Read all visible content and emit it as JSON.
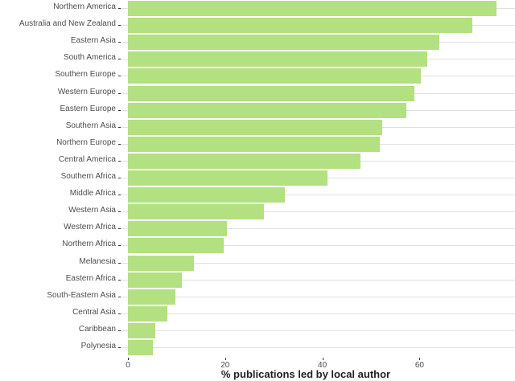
{
  "chart_data": {
    "type": "bar",
    "orientation": "horizontal",
    "title": "",
    "xlabel": "% publications led by local author",
    "ylabel": "",
    "xlim": [
      0,
      79
    ],
    "x_ticks": [
      0,
      20,
      40,
      60
    ],
    "grid": true,
    "legend": null,
    "bar_color": "#b3e080",
    "categories": [
      "Northern America",
      "Australia and New Zealand",
      "Eastern Asia",
      "South America",
      "Southern Europe",
      "Western Europe",
      "Eastern Europe",
      "Southern Asia",
      "Northern Europe",
      "Central America",
      "Southern Africa",
      "Middle Africa",
      "Western Asia",
      "Western Africa",
      "Northern Africa",
      "Melanesia",
      "Eastern Africa",
      "South-Eastern Asia",
      "Central Asia",
      "Caribbean",
      "Polynesia"
    ],
    "values": [
      75.8,
      70.9,
      64.1,
      61.6,
      60.3,
      58.9,
      57.3,
      52.3,
      51.8,
      47.8,
      41.1,
      32.3,
      28.0,
      20.4,
      19.7,
      13.6,
      11.1,
      9.8,
      8.1,
      5.6,
      5.1
    ]
  }
}
